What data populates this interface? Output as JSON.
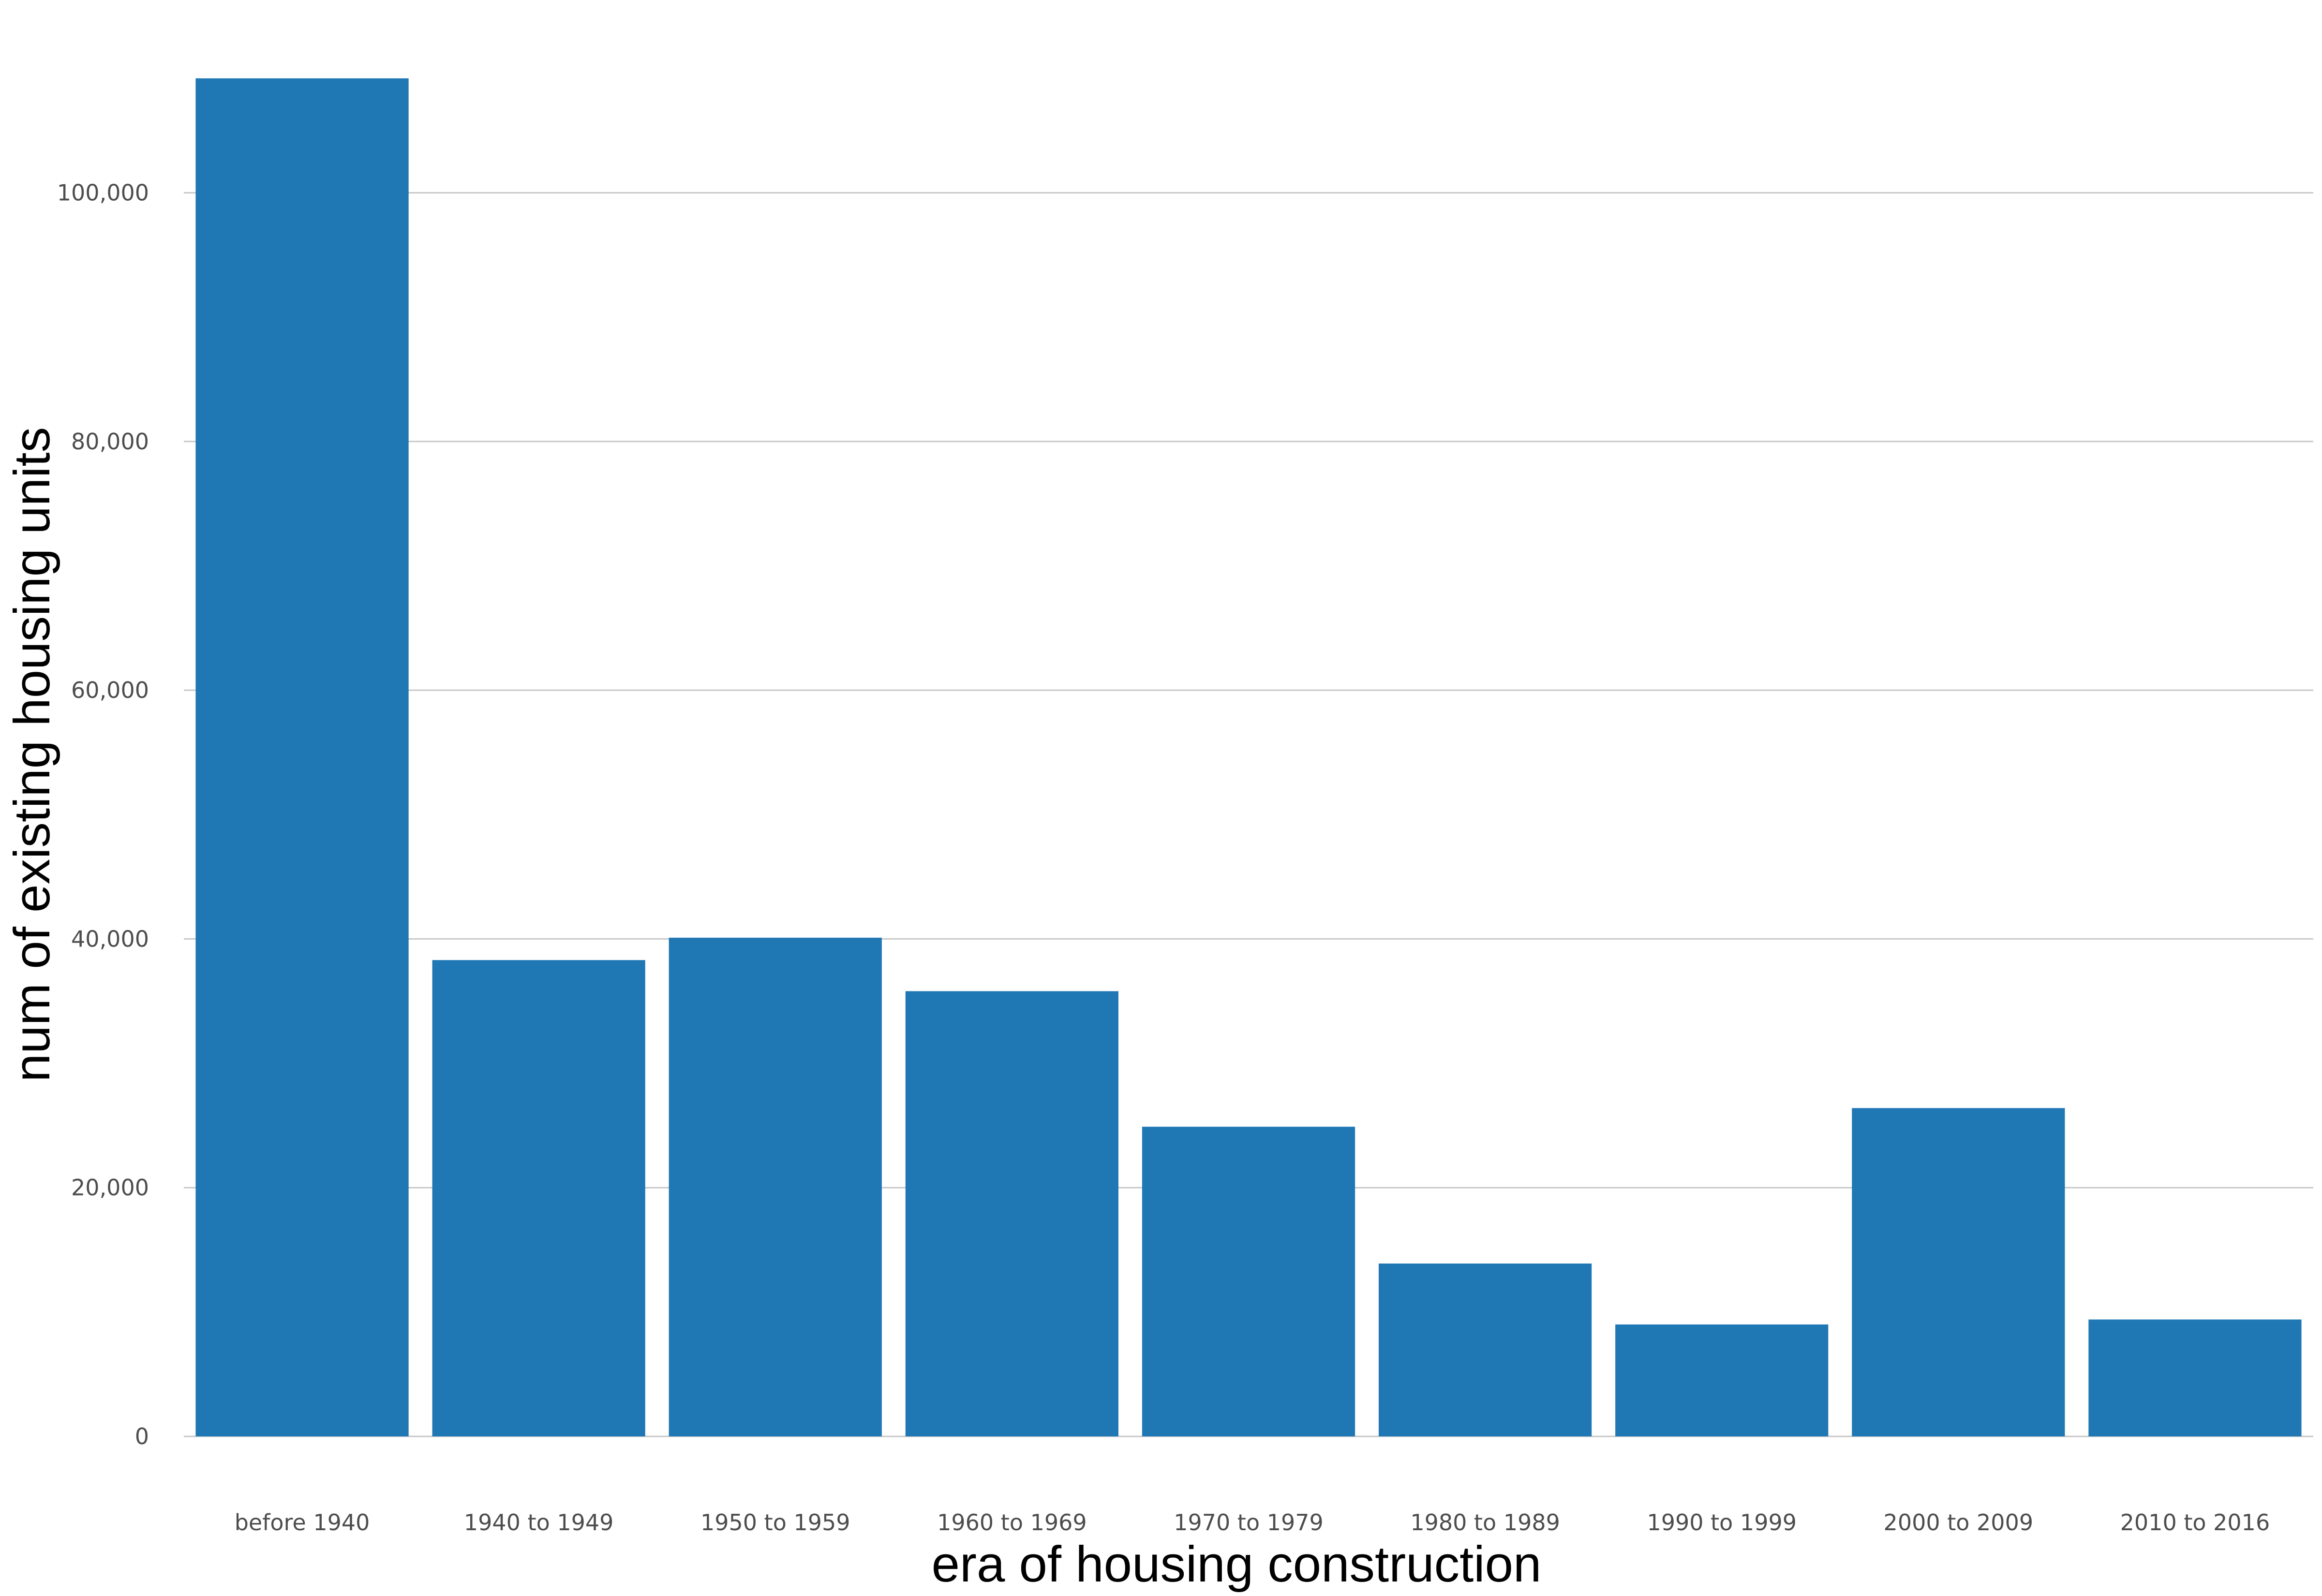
{
  "chart_data": {
    "type": "bar",
    "title": "",
    "xlabel": "era of housing construction",
    "ylabel": "num of existing housing units",
    "categories": [
      "before 1940",
      "1940 to 1949",
      "1950 to 1959",
      "1960 to 1969",
      "1970 to 1979",
      "1980 to 1989",
      "1990 to 1999",
      "2000 to 2009",
      "2010 to 2016"
    ],
    "values": [
      109200,
      38300,
      40100,
      35800,
      24900,
      13900,
      9000,
      26400,
      9400
    ],
    "ylim": [
      0,
      109200
    ],
    "yticks": [
      0,
      20000,
      40000,
      60000,
      80000,
      100000
    ],
    "ytick_labels": [
      "0",
      "20,000",
      "40,000",
      "60,000",
      "80,000",
      "100,000"
    ],
    "grid": true,
    "legend": "none",
    "bar_color": "#1f77b4",
    "grid_color": "#c8c8c8"
  }
}
